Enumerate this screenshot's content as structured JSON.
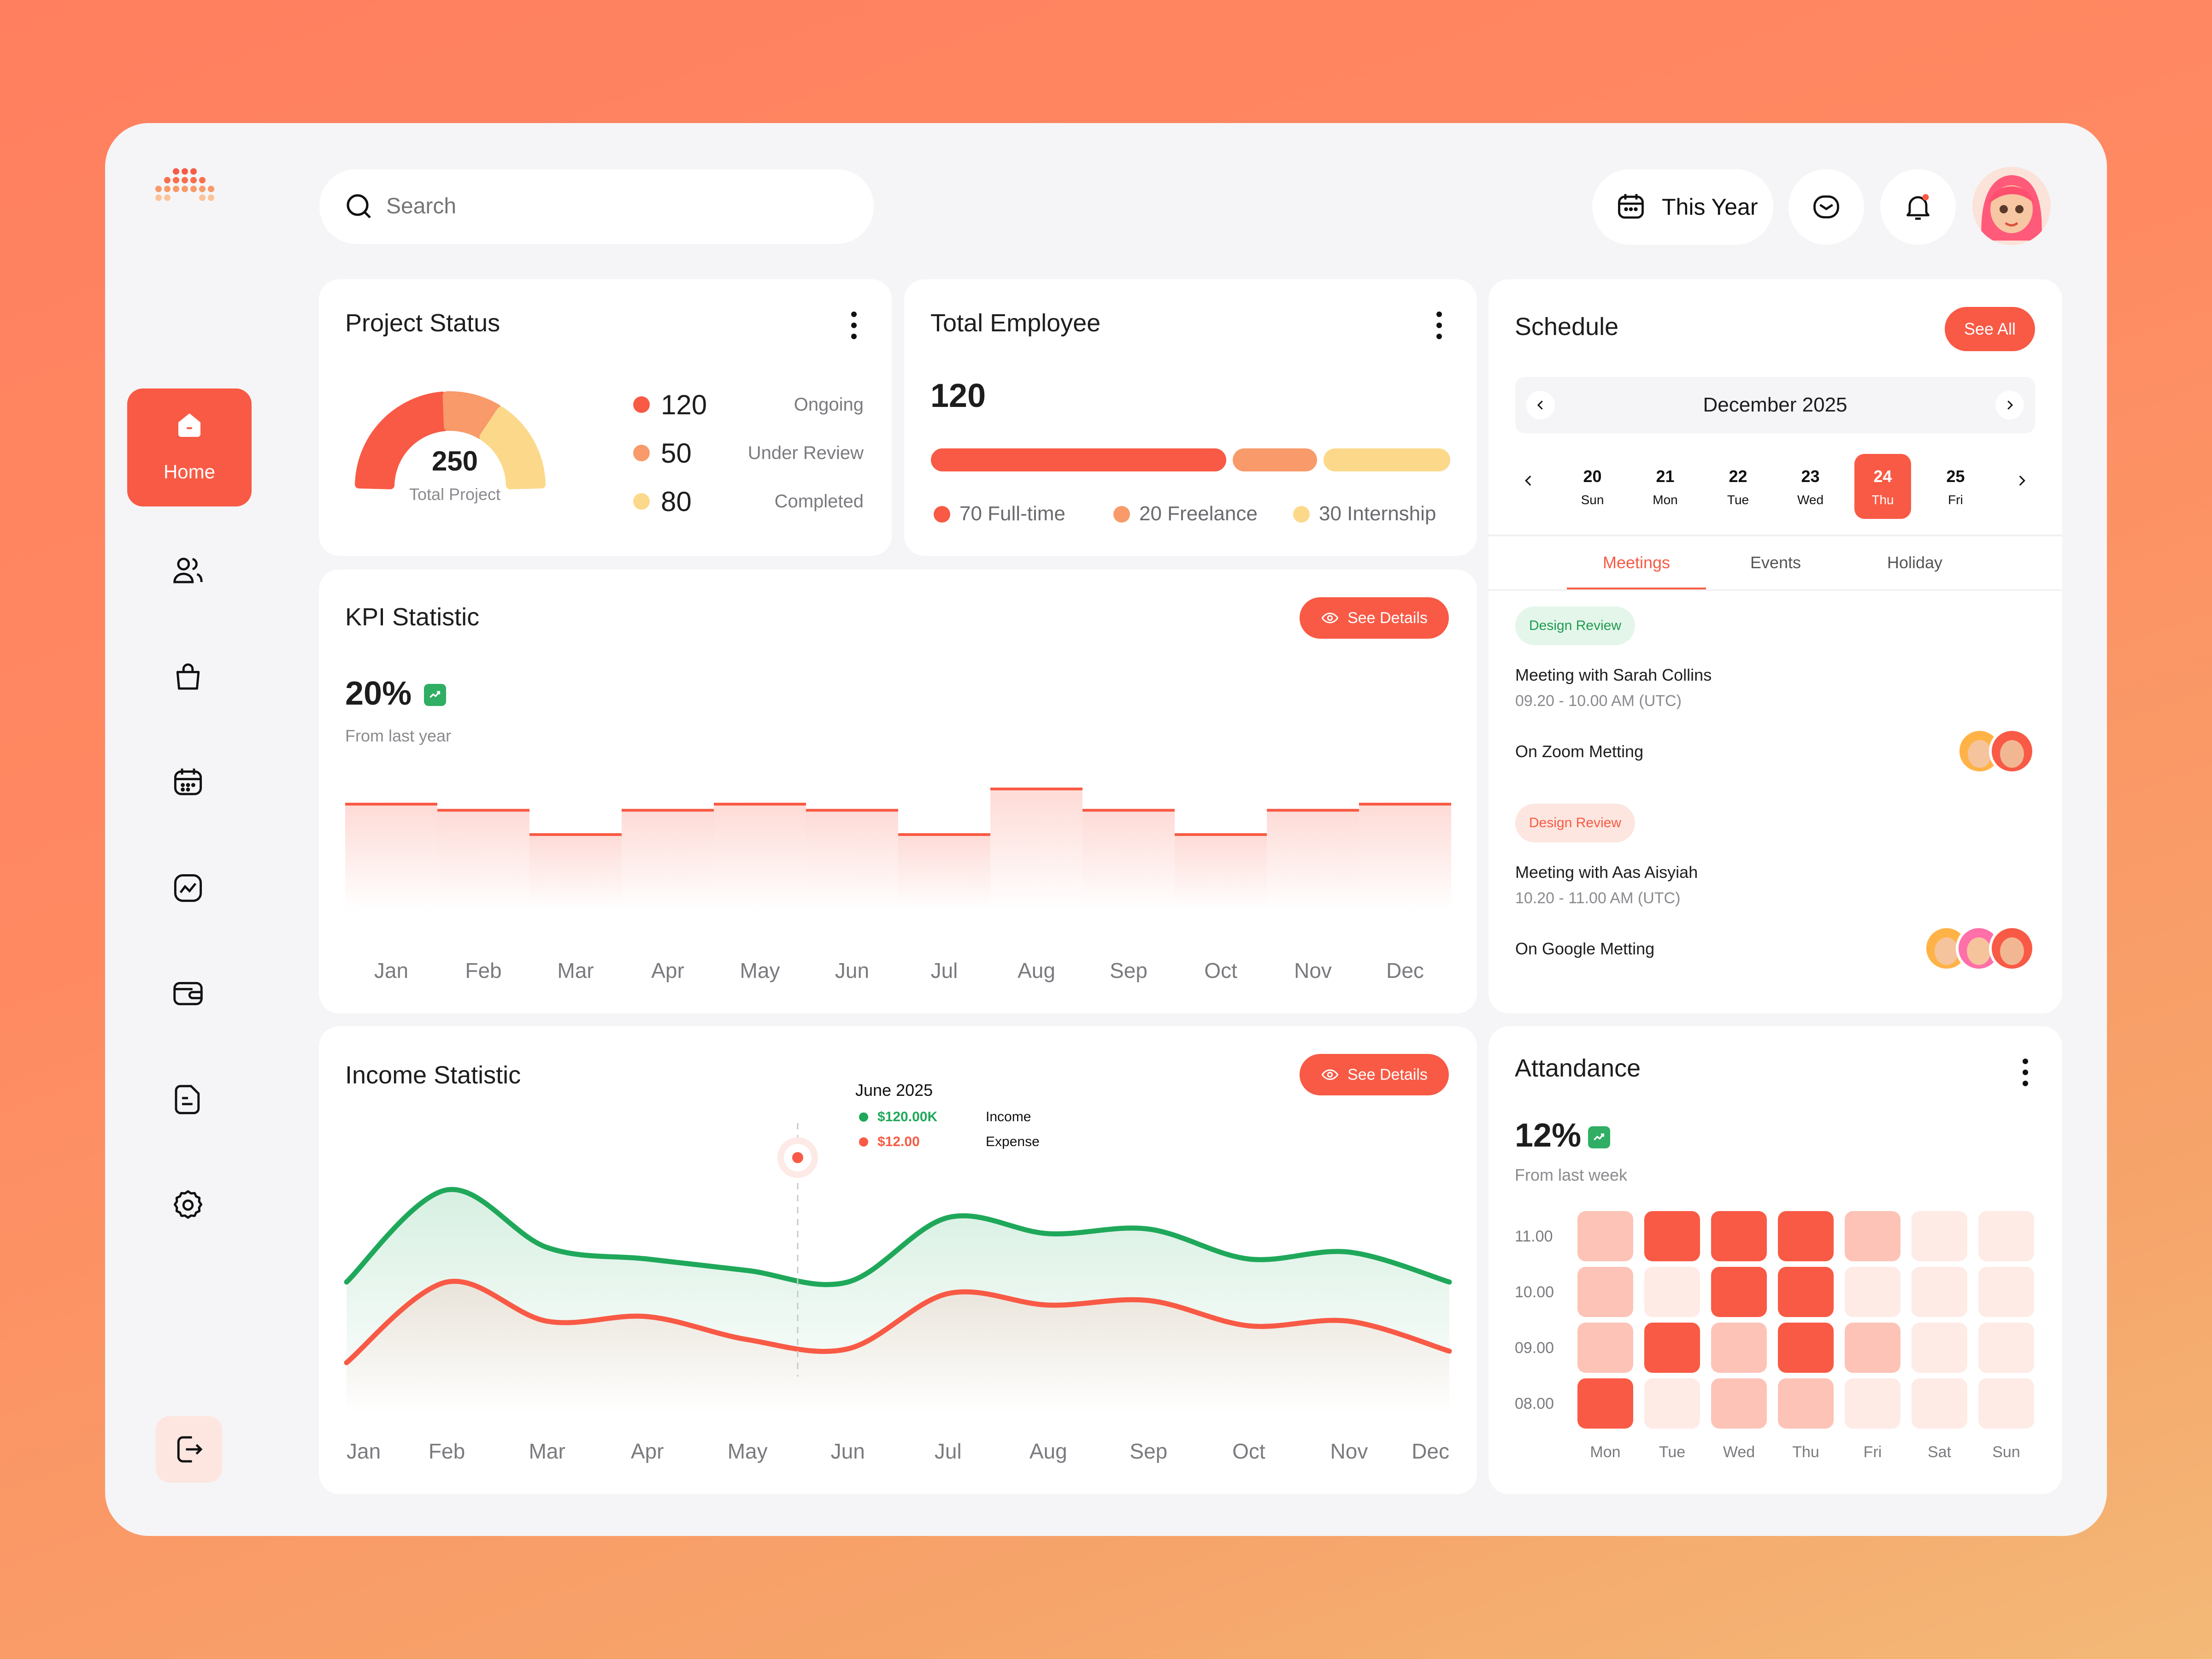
{
  "brand": {
    "logo": "dot-logo"
  },
  "search": {
    "placeholder": "Search"
  },
  "header": {
    "period_label": "This Year"
  },
  "sidebar": {
    "items": [
      {
        "label": "Home",
        "icon": "home-icon",
        "active": true
      },
      {
        "icon": "users-icon"
      },
      {
        "icon": "bag-icon"
      },
      {
        "icon": "calendar-icon"
      },
      {
        "icon": "chart-icon"
      },
      {
        "icon": "wallet-icon"
      },
      {
        "icon": "document-icon"
      },
      {
        "icon": "settings-icon"
      }
    ],
    "logout_icon": "logout-icon"
  },
  "project_status": {
    "title": "Project Status",
    "total": "250",
    "total_label": "Total Project",
    "items": [
      {
        "value": "120",
        "label": "Ongoing",
        "color": "#f85a45"
      },
      {
        "value": "50",
        "label": "Under Review",
        "color": "#f89a6a"
      },
      {
        "value": "80",
        "label": "Completed",
        "color": "#fcd98a"
      }
    ]
  },
  "total_employee": {
    "title": "Total Employee",
    "total": "120",
    "segments": [
      {
        "label": "70 Full-time",
        "value": 70,
        "color": "#f85a45"
      },
      {
        "label": "20 Freelance",
        "value": 20,
        "color": "#f89a6a"
      },
      {
        "label": "30 Internship",
        "value": 30,
        "color": "#fcd98a"
      }
    ]
  },
  "kpi": {
    "title": "KPI Statistic",
    "button": "See Details",
    "percent": "20%",
    "sub": "From last year"
  },
  "income": {
    "title": "Income Statistic",
    "button": "See Details",
    "tooltip": {
      "date": "June 2025",
      "income_value": "$120.00K",
      "income_label": "Income",
      "expense_value": "$12.00",
      "expense_label": "Expense"
    }
  },
  "schedule": {
    "title": "Schedule",
    "see_all": "See All",
    "month": "December 2025",
    "days": [
      {
        "num": "20",
        "name": "Sun"
      },
      {
        "num": "21",
        "name": "Mon"
      },
      {
        "num": "22",
        "name": "Tue"
      },
      {
        "num": "23",
        "name": "Wed"
      },
      {
        "num": "24",
        "name": "Thu",
        "active": true
      },
      {
        "num": "25",
        "name": "Fri"
      }
    ],
    "tabs": [
      "Meetings",
      "Events",
      "Holiday"
    ],
    "meetings": [
      {
        "tag": "Design Review",
        "title": "Meeting with Sarah Collins",
        "time": "09.20 - 10.00 AM (UTC)",
        "place": "On Zoom Metting"
      },
      {
        "tag": "Design Review",
        "title": "Meeting with Aas Aisyiah",
        "time": "10.20 - 11.00 AM (UTC)",
        "place": "On Google Metting"
      }
    ]
  },
  "attendance": {
    "title": "Attandance",
    "percent": "12%",
    "sub": "From last week",
    "times": [
      "11.00",
      "10.00",
      "09.00",
      "08.00"
    ],
    "days": [
      "Mon",
      "Tue",
      "Wed",
      "Thu",
      "Fri",
      "Sat",
      "Sun"
    ]
  },
  "chart_data": [
    {
      "type": "bar",
      "title": "KPI Statistic",
      "categories": [
        "Jan",
        "Feb",
        "Mar",
        "Apr",
        "May",
        "Jun",
        "Jul",
        "Aug",
        "Sep",
        "Oct",
        "Nov",
        "Dec"
      ],
      "values": [
        70,
        66,
        50,
        66,
        70,
        66,
        50,
        80,
        66,
        50,
        66,
        70
      ]
    },
    {
      "type": "area",
      "title": "Income Statistic",
      "categories": [
        "Jan",
        "Feb",
        "Mar",
        "Apr",
        "May",
        "Jun",
        "Jul",
        "Aug",
        "Sep",
        "Oct",
        "Nov",
        "Dec"
      ],
      "series": [
        {
          "name": "Income",
          "color": "#1fa85a",
          "values": [
            55,
            95,
            70,
            65,
            60,
            55,
            83,
            76,
            78,
            65,
            68,
            55
          ]
        },
        {
          "name": "Expense",
          "color": "#f85a45",
          "values": [
            20,
            55,
            38,
            40,
            30,
            26,
            50,
            45,
            47,
            36,
            38,
            25
          ]
        }
      ]
    },
    {
      "type": "heatmap",
      "title": "Attandance",
      "x": [
        "Mon",
        "Tue",
        "Wed",
        "Thu",
        "Fri",
        "Sat",
        "Sun"
      ],
      "y": [
        "11.00",
        "10.00",
        "09.00",
        "08.00"
      ],
      "values": [
        [
          2,
          4,
          4,
          4,
          2,
          1,
          1
        ],
        [
          2,
          1,
          4,
          4,
          1,
          1,
          1
        ],
        [
          2,
          4,
          2,
          4,
          2,
          1,
          1
        ],
        [
          4,
          1,
          2,
          2,
          1,
          1,
          1
        ]
      ]
    }
  ]
}
